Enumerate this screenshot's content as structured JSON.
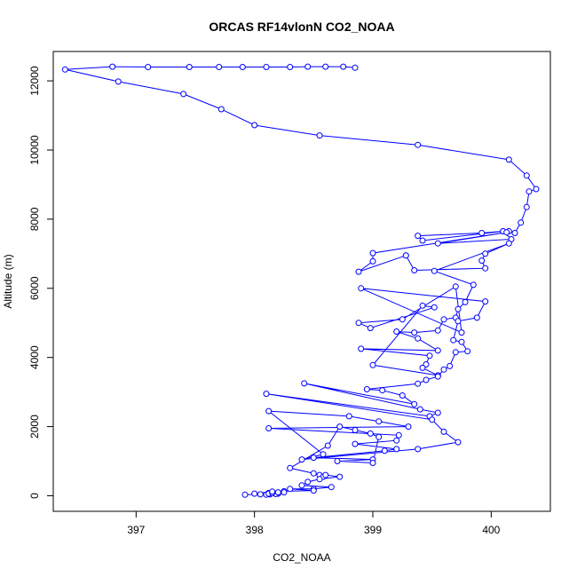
{
  "chart_data": {
    "type": "line",
    "title": "ORCAS RF14vlonN CO2_NOAA",
    "xlabel": "CO2_NOAA",
    "ylabel": "Altitude (m)",
    "xlim": [
      396.3,
      400.5
    ],
    "ylim": [
      -450,
      12850
    ],
    "x_ticks": [
      397,
      398,
      399,
      400
    ],
    "y_ticks": [
      0,
      2000,
      4000,
      6000,
      8000,
      10000,
      12000
    ],
    "x_tick_labels": [
      "397",
      "398",
      "399",
      "400"
    ],
    "y_tick_labels": [
      "0",
      "2000",
      "4000",
      "6000",
      "8000",
      "10000",
      "12000"
    ],
    "grid": false,
    "marker": "open-circle",
    "series": [
      {
        "color": "#0000ff",
        "x": [
          398.85,
          398.75,
          398.6,
          398.45,
          398.3,
          398.1,
          397.9,
          397.7,
          397.45,
          397.1,
          396.8,
          396.4,
          396.85,
          397.4,
          397.72,
          398.0,
          398.55,
          399.38,
          400.15,
          400.3,
          400.38,
          400.32,
          400.3,
          400.25,
          400.2,
          400.15,
          400.1,
          399.92,
          399.38,
          399.42,
          400.1,
          400.17,
          399.55,
          400.13,
          399.0,
          399.0,
          398.88,
          399.28,
          399.28,
          399.35,
          399.95,
          399.92,
          399.95,
          400.15,
          399.52,
          399.85,
          399.78,
          399.72,
          399.7,
          399.6,
          399.55,
          399.35,
          399.2,
          399.38,
          399.55,
          398.9,
          399.48,
          399.45,
          399.42,
          399.55,
          399.0,
          399.42,
          399.52,
          398.98,
          398.88,
          399.25,
          399.7,
          399.75,
          398.9,
          399.95,
          399.88,
          399.72,
          399.68,
          399.75,
          399.8,
          399.7,
          399.65,
          399.6,
          399.55,
          399.45,
          399.38,
          398.95,
          399.08,
          399.25,
          399.35,
          398.42,
          399.4,
          399.55,
          399.48,
          398.1,
          399.5,
          399.6,
          399.72,
          399.38,
          398.4,
          398.58,
          398.12,
          398.8,
          399.05,
          399.3,
          398.12,
          399.22,
          399.2,
          398.85,
          399.2,
          399.1,
          398.5,
          399.0,
          398.7,
          399.0,
          399.05,
          398.98,
          398.85,
          398.72,
          398.62,
          398.3,
          398.5,
          398.55,
          398.58,
          398.6,
          398.72,
          398.55,
          398.45,
          398.4,
          398.65,
          398.5,
          398.3,
          398.5,
          398.25,
          398.25,
          398.2,
          398.12,
          398.18,
          398.13,
          398.1,
          398.12,
          398.15,
          398.2,
          398.15,
          398.0,
          398.05,
          397.92
        ],
        "y": [
          12380,
          12410,
          12410,
          12410,
          12400,
          12400,
          12400,
          12400,
          12400,
          12400,
          12410,
          12330,
          11980,
          11620,
          11180,
          10720,
          10420,
          10150,
          9720,
          9260,
          8870,
          8800,
          8350,
          7900,
          7600,
          7650,
          7650,
          7600,
          7520,
          7380,
          7650,
          7420,
          7300,
          7620,
          7020,
          6780,
          6480,
          6950,
          6950,
          6520,
          6580,
          6800,
          7000,
          7300,
          6500,
          6100,
          5600,
          5400,
          5150,
          5100,
          4780,
          4720,
          4750,
          4550,
          4200,
          4250,
          4050,
          3800,
          3700,
          3480,
          3780,
          5500,
          5450,
          4850,
          5000,
          5100,
          6050,
          4720,
          6000,
          5620,
          5150,
          5050,
          4500,
          4450,
          4180,
          4150,
          3750,
          3650,
          3450,
          3350,
          3240,
          3080,
          3050,
          2900,
          2650,
          3250,
          2500,
          2400,
          2300,
          2950,
          2200,
          1850,
          1550,
          1350,
          1050,
          1200,
          2450,
          2300,
          2150,
          2000,
          1950,
          1750,
          1600,
          1500,
          1350,
          1300,
          1100,
          1050,
          1000,
          950,
          1700,
          1800,
          1900,
          2000,
          1450,
          800,
          650,
          600,
          550,
          600,
          550,
          480,
          400,
          300,
          250,
          200,
          200,
          150,
          130,
          100,
          60,
          80,
          50,
          40,
          30,
          60,
          80,
          100,
          120,
          60,
          40,
          30
        ]
      }
    ]
  }
}
